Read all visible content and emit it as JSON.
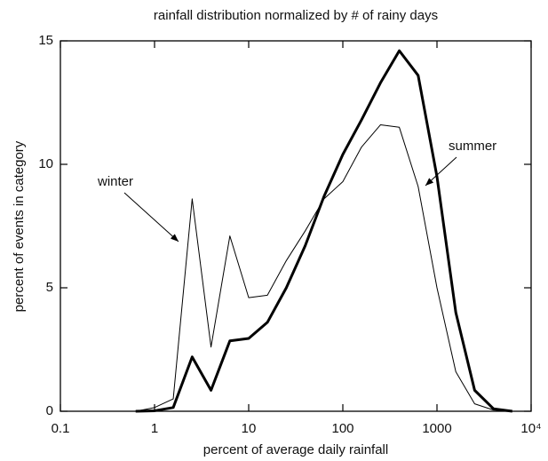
{
  "chart_data": {
    "type": "line",
    "title": "rainfall distribution normalized by # of rainy days",
    "x_label": "percent of average daily rainfall",
    "y_label": "percent of events in category",
    "x_scale": "log",
    "x": [
      0.63,
      1,
      1.58,
      2.51,
      3.98,
      6.31,
      10,
      15.8,
      25.1,
      39.8,
      63.1,
      100,
      158,
      251,
      398,
      631,
      1000,
      1585,
      2512,
      3981,
      6310
    ],
    "series": [
      {
        "name": "winter",
        "color": "#000000",
        "width": 1,
        "values": [
          0,
          0.15,
          0.5,
          8.6,
          2.6,
          7.1,
          4.6,
          4.7,
          6.1,
          7.3,
          8.6,
          9.3,
          10.7,
          11.6,
          11.5,
          9.1,
          5.0,
          1.6,
          0.3,
          0.05,
          0
        ]
      },
      {
        "name": "summer",
        "color": "#000000",
        "width": 3,
        "values": [
          0,
          0.02,
          0.15,
          2.2,
          0.85,
          2.85,
          2.95,
          3.6,
          5.0,
          6.7,
          8.7,
          10.4,
          11.8,
          13.3,
          14.6,
          13.6,
          9.5,
          4.0,
          0.85,
          0.1,
          0
        ]
      }
    ],
    "xlim": [
      0.1,
      10000
    ],
    "xticks": [
      0.1,
      1,
      10,
      100,
      1000,
      {
        "value": 10000,
        "label": "10⁴"
      }
    ],
    "ylim": [
      0,
      15
    ],
    "yticks": [
      0,
      5,
      10,
      15
    ],
    "annotations": [
      "winter",
      "summer"
    ]
  }
}
